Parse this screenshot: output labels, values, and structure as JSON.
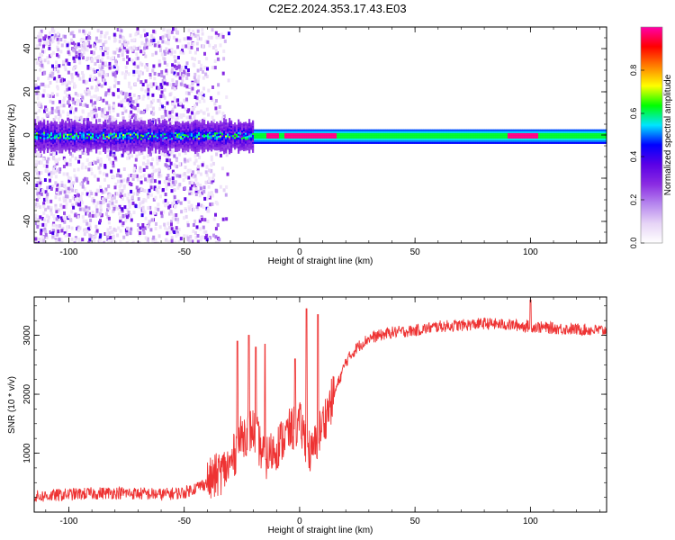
{
  "title": "C2E2.2024.353.17.43.E03",
  "chart_data": [
    {
      "type": "heatmap",
      "xlabel": "Height of straight line (km)",
      "ylabel": "Frequency (Hz)",
      "xlim": [
        -115,
        133
      ],
      "ylim": [
        -50,
        50
      ],
      "xticks": [
        -100,
        -50,
        0,
        50,
        100
      ],
      "yticks": [
        -40,
        -20,
        0,
        20,
        40
      ],
      "xtick_labels": [
        "-100",
        "-50",
        "0",
        "50",
        "100"
      ],
      "ytick_labels": [
        "-40",
        "-20",
        "0",
        "20",
        "40"
      ],
      "colorbar": {
        "label": "Normalized spectral amplitude",
        "range": [
          0.0,
          1.0
        ],
        "ticks": [
          0.0,
          0.2,
          0.4,
          0.6,
          0.8
        ],
        "tick_labels": [
          "0.0",
          "0.2",
          "0.4",
          "0.6",
          "0.8"
        ],
        "colors": [
          "#ffffff",
          "#e6d4f6",
          "#b585ee",
          "#8a2be2",
          "#5a00e6",
          "#0000ff",
          "#00e5ff",
          "#00ff00",
          "#ffff00",
          "#ff8000",
          "#ff0000",
          "#ff00aa"
        ]
      },
      "band_center_hz": 0,
      "hot_spots_km": [
        -12,
        -4,
        2,
        8,
        13,
        93,
        97,
        100
      ],
      "scatter_region_km": [
        -115,
        -30
      ]
    },
    {
      "type": "line",
      "xlabel": "Height of straight line (km)",
      "ylabel": "SNR (10 * v/v)",
      "xlim": [
        -115,
        133
      ],
      "ylim": [
        0,
        3650
      ],
      "xticks": [
        -100,
        -50,
        0,
        50,
        100
      ],
      "yticks": [
        1000,
        2000,
        3000
      ],
      "xtick_labels": [
        "-100",
        "-50",
        "0",
        "50",
        "100"
      ],
      "ytick_labels": [
        "1000",
        "2000",
        "3000"
      ],
      "color": "#ee3333",
      "trend": [
        [
          -115,
          260
        ],
        [
          -100,
          300
        ],
        [
          -80,
          330
        ],
        [
          -60,
          300
        ],
        [
          -50,
          330
        ],
        [
          -40,
          500
        ],
        [
          -30,
          800
        ],
        [
          -25,
          1300
        ],
        [
          -20,
          1400
        ],
        [
          -15,
          900
        ],
        [
          -10,
          1100
        ],
        [
          -5,
          1350
        ],
        [
          0,
          1500
        ],
        [
          3,
          1200
        ],
        [
          5,
          950
        ],
        [
          10,
          1500
        ],
        [
          15,
          2000
        ],
        [
          20,
          2550
        ],
        [
          25,
          2800
        ],
        [
          30,
          2950
        ],
        [
          40,
          3050
        ],
        [
          50,
          3080
        ],
        [
          60,
          3150
        ],
        [
          70,
          3170
        ],
        [
          80,
          3200
        ],
        [
          90,
          3180
        ],
        [
          100,
          3150
        ],
        [
          110,
          3120
        ],
        [
          120,
          3100
        ],
        [
          133,
          3080
        ]
      ],
      "spikes": [
        [
          -27,
          2900
        ],
        [
          -22,
          3000
        ],
        [
          -19,
          2800
        ],
        [
          -15,
          2850
        ],
        [
          -2,
          2600
        ],
        [
          3,
          3450
        ],
        [
          8,
          3350
        ],
        [
          100,
          3600
        ]
      ]
    }
  ]
}
